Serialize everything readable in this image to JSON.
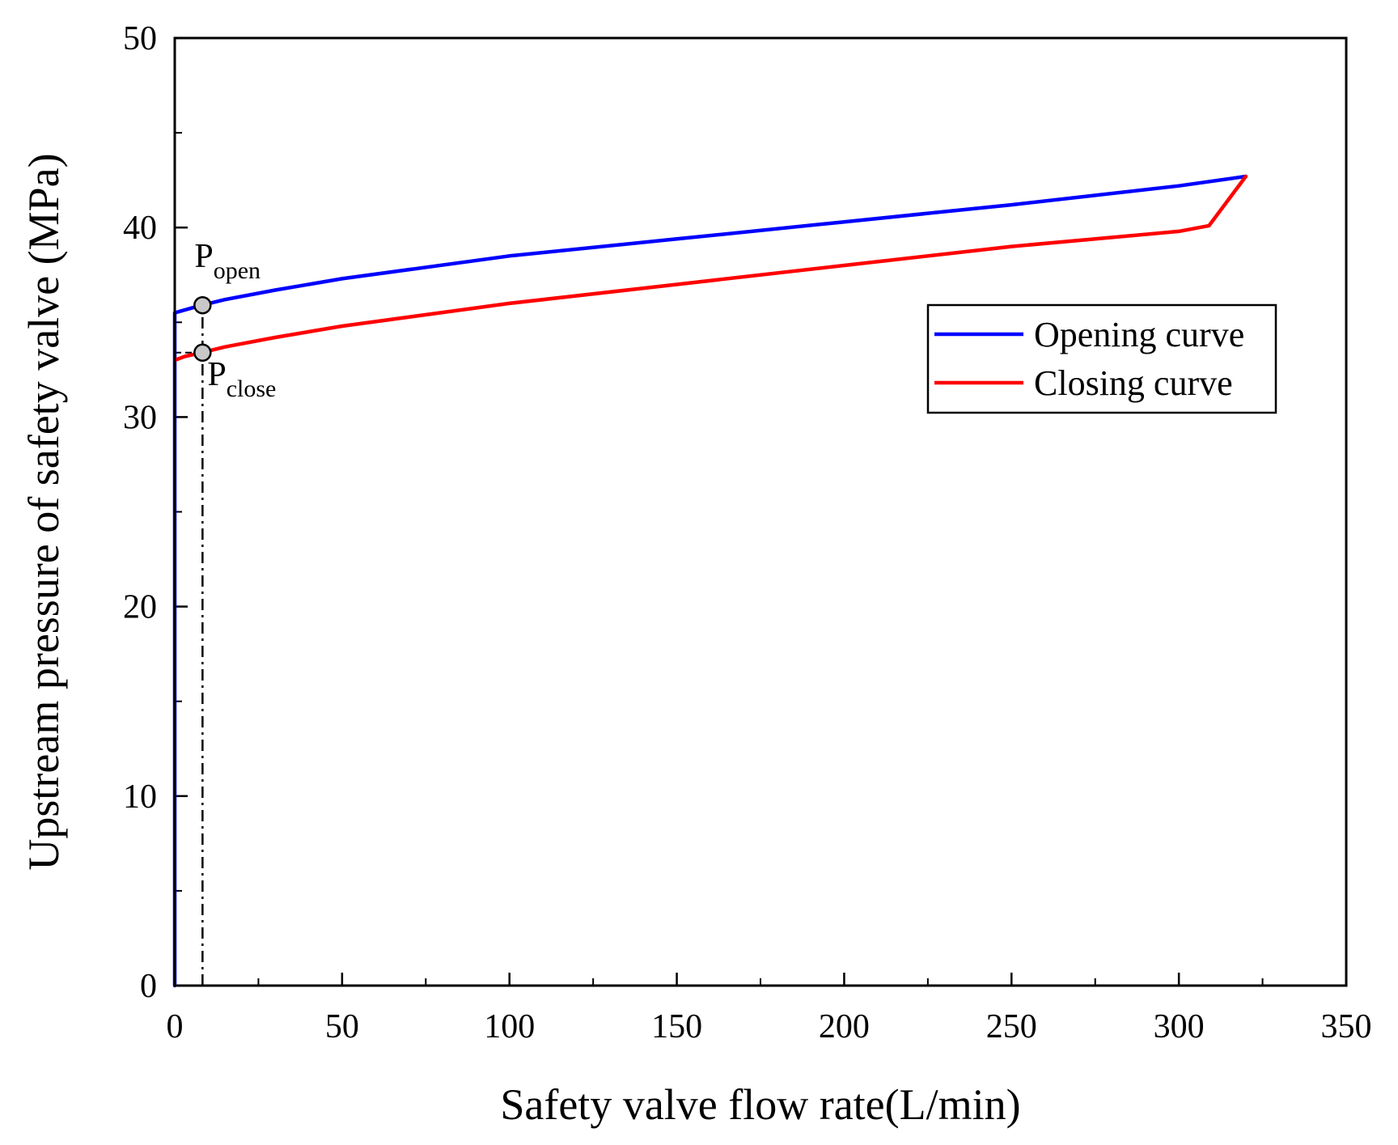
{
  "chart_data": {
    "type": "line",
    "title": "",
    "xlabel": "Safety valve flow rate(L/min)",
    "ylabel": "Upstream pressure of safety valve (MPa)",
    "xlim": [
      0,
      350
    ],
    "ylim": [
      0,
      50
    ],
    "xticks": [
      0,
      50,
      100,
      150,
      200,
      250,
      300,
      350
    ],
    "yticks": [
      0,
      10,
      20,
      30,
      40,
      50
    ],
    "xtick_labels": [
      "0",
      "50",
      "100",
      "150",
      "200",
      "250",
      "300",
      "350"
    ],
    "ytick_labels": [
      "0",
      "10",
      "20",
      "30",
      "40",
      "50"
    ],
    "grid": false,
    "legend_position": "upper-right",
    "series": [
      {
        "name": "Opening curve",
        "color": "#0000ff",
        "x": [
          0,
          0,
          2,
          5,
          8,
          15,
          30,
          50,
          100,
          150,
          200,
          250,
          300,
          320
        ],
        "y": [
          0,
          35.5,
          35.6,
          35.75,
          35.9,
          36.2,
          36.7,
          37.3,
          38.5,
          39.4,
          40.3,
          41.2,
          42.2,
          42.7
        ]
      },
      {
        "name": "Closing curve",
        "color": "#ff0000",
        "x": [
          0,
          3,
          8,
          15,
          30,
          50,
          100,
          150,
          200,
          250,
          300,
          309,
          320
        ],
        "y": [
          33.0,
          33.2,
          33.4,
          33.7,
          34.2,
          34.8,
          36.0,
          37.0,
          38.0,
          39.0,
          39.8,
          40.1,
          42.7
        ]
      }
    ],
    "annotations": [
      {
        "name": "P-open",
        "main": "P",
        "sub": "open",
        "x": 8.3,
        "y": 35.9
      },
      {
        "name": "P-close",
        "main": "P",
        "sub": "close",
        "x": 8.3,
        "y": 33.4
      }
    ],
    "reference_line": {
      "type": "dash-dot",
      "x": 8.3,
      "y_from": 0,
      "y_to": 35.9
    }
  }
}
